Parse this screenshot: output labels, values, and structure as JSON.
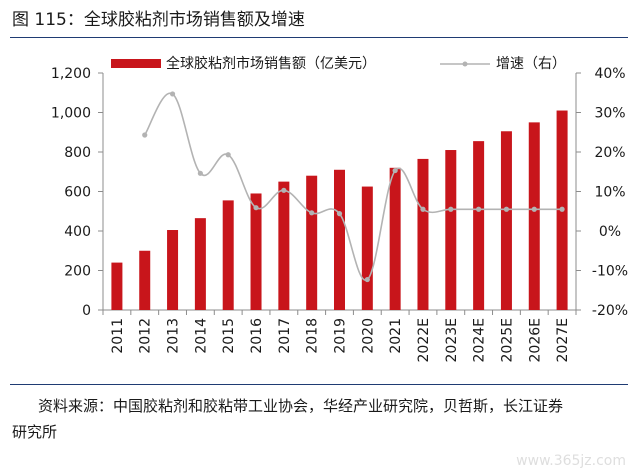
{
  "figure": {
    "title": "图 115：全球胶粘剂市场销售额及增速",
    "source_line1": "资料来源：中国胶粘剂和胶粘带工业协会，华经产业研究院，贝哲斯，长江证券",
    "source_line2": "研究所",
    "watermark": "www.365jz.com"
  },
  "chart_data": {
    "type": "bar",
    "categories": [
      "2011",
      "2012",
      "2013",
      "2014",
      "2015",
      "2016",
      "2017",
      "2018",
      "2019",
      "2020",
      "2021",
      "2022E",
      "2023E",
      "2024E",
      "2025E",
      "2026E",
      "2027E"
    ],
    "series": [
      {
        "name": "全球胶粘剂市场销售额（亿美元）",
        "type": "bar",
        "axis": "left",
        "color": "#c8151b",
        "values": [
          240,
          300,
          405,
          465,
          555,
          590,
          650,
          680,
          710,
          625,
          720,
          765,
          810,
          855,
          905,
          950,
          1010
        ]
      },
      {
        "name": "增速（右）",
        "type": "line",
        "axis": "right",
        "color": "#b3b3b3",
        "values": [
          null,
          24.3,
          34.7,
          14.6,
          19.3,
          5.9,
          10.3,
          4.6,
          4.4,
          -12.3,
          15.3,
          5.5,
          5.5,
          5.5,
          5.5,
          5.5,
          5.5
        ]
      }
    ],
    "y_left": {
      "min": 0,
      "max": 1200,
      "ticks": [
        "0",
        "200",
        "400",
        "600",
        "800",
        "1,000",
        "1,200"
      ]
    },
    "y_right": {
      "min": -20,
      "max": 40,
      "ticks": [
        "-20%",
        "-10%",
        "0%",
        "10%",
        "20%",
        "30%",
        "40%"
      ]
    },
    "legend_position": "top",
    "grid": false
  }
}
